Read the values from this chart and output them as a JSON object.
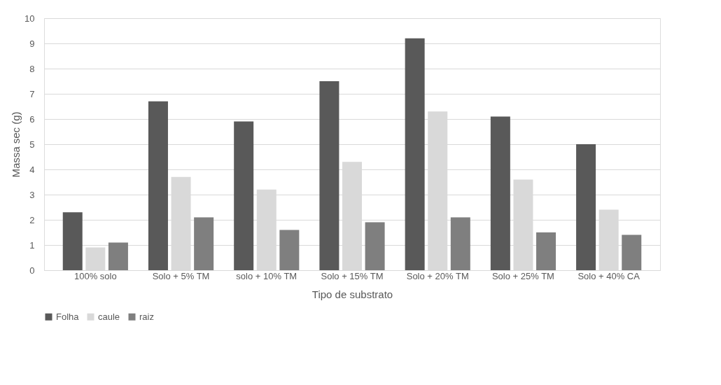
{
  "chart_data": {
    "type": "bar",
    "xlabel": "Tipo de substrato",
    "ylabel": "Massa sec (g)",
    "categories": [
      "100% solo",
      "Solo + 5% TM",
      "solo + 10% TM",
      "Solo + 15% TM",
      "Solo + 20% TM",
      "Solo + 25% TM",
      "Solo + 40% CA"
    ],
    "series": [
      {
        "name": "Folha",
        "color": "#595959",
        "values": [
          2.3,
          6.7,
          5.9,
          7.5,
          9.2,
          6.1,
          5.0
        ]
      },
      {
        "name": "caule",
        "color": "#d9d9d9",
        "values": [
          0.9,
          3.7,
          3.2,
          4.3,
          6.3,
          3.6,
          2.4
        ]
      },
      {
        "name": "raiz",
        "color": "#7f7f7f",
        "values": [
          1.1,
          2.1,
          1.6,
          1.9,
          2.1,
          1.5,
          1.4
        ]
      }
    ],
    "ylim": [
      0,
      10
    ],
    "yticks": [
      0,
      1,
      2,
      3,
      4,
      5,
      6,
      7,
      8,
      9,
      10
    ],
    "grid": "y",
    "legend": "bottom"
  }
}
